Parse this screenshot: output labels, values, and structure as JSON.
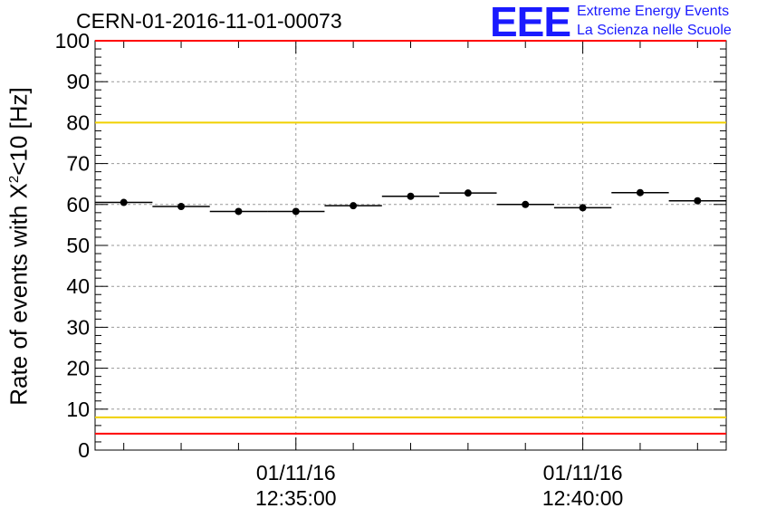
{
  "title": "CERN-01-2016-11-01-00073",
  "logo": {
    "mark": "EEE",
    "line1": "Extreme Energy Events",
    "line2": "La Scienza nelle Scuole",
    "color": "#1a1aff"
  },
  "ylabel": {
    "prefix": "Rate of events with X",
    "sup": "2",
    "suffix": "<10 [Hz]"
  },
  "colors": {
    "threshold_red": "#ff0000",
    "threshold_yellow": "#f0d000",
    "grid": "#999999",
    "points": "#000000"
  },
  "chart_data": {
    "type": "scatter",
    "xlabel": "",
    "ylabel": "Rate of events with X^2<10 [Hz]",
    "ylim": [
      0,
      100
    ],
    "xlim": [
      "2016-11-01 12:31:30",
      "2016-11-01 12:42:30"
    ],
    "x_ticks": [
      {
        "x": "2016-11-01 12:35:00",
        "date": "01/11/16",
        "time": "12:35:00"
      },
      {
        "x": "2016-11-01 12:40:00",
        "date": "01/11/16",
        "time": "12:40:00"
      }
    ],
    "y_ticks": [
      0,
      10,
      20,
      30,
      40,
      50,
      60,
      70,
      80,
      90,
      100
    ],
    "grid": true,
    "horizontal_lines": [
      {
        "y": 100,
        "color": "#ff0000"
      },
      {
        "y": 80,
        "color": "#f0d000"
      },
      {
        "y": 8,
        "color": "#f0d000"
      },
      {
        "y": 4,
        "color": "#ff0000"
      }
    ],
    "points": [
      {
        "x_start": "2016-11-01 12:31:30",
        "x_end": "2016-11-01 12:32:30",
        "y": 60.5
      },
      {
        "x_start": "2016-11-01 12:32:30",
        "x_end": "2016-11-01 12:33:30",
        "y": 59.5
      },
      {
        "x_start": "2016-11-01 12:33:30",
        "x_end": "2016-11-01 12:34:30",
        "y": 58.3
      },
      {
        "x_start": "2016-11-01 12:34:30",
        "x_end": "2016-11-01 12:35:30",
        "y": 58.3
      },
      {
        "x_start": "2016-11-01 12:35:30",
        "x_end": "2016-11-01 12:36:30",
        "y": 59.7
      },
      {
        "x_start": "2016-11-01 12:36:30",
        "x_end": "2016-11-01 12:37:30",
        "y": 62.0
      },
      {
        "x_start": "2016-11-01 12:37:30",
        "x_end": "2016-11-01 12:38:30",
        "y": 62.8
      },
      {
        "x_start": "2016-11-01 12:38:30",
        "x_end": "2016-11-01 12:39:30",
        "y": 60.0
      },
      {
        "x_start": "2016-11-01 12:39:30",
        "x_end": "2016-11-01 12:40:30",
        "y": 59.2
      },
      {
        "x_start": "2016-11-01 12:40:30",
        "x_end": "2016-11-01 12:41:30",
        "y": 62.9
      },
      {
        "x_start": "2016-11-01 12:41:30",
        "x_end": "2016-11-01 12:42:30",
        "y": 60.9
      }
    ]
  }
}
